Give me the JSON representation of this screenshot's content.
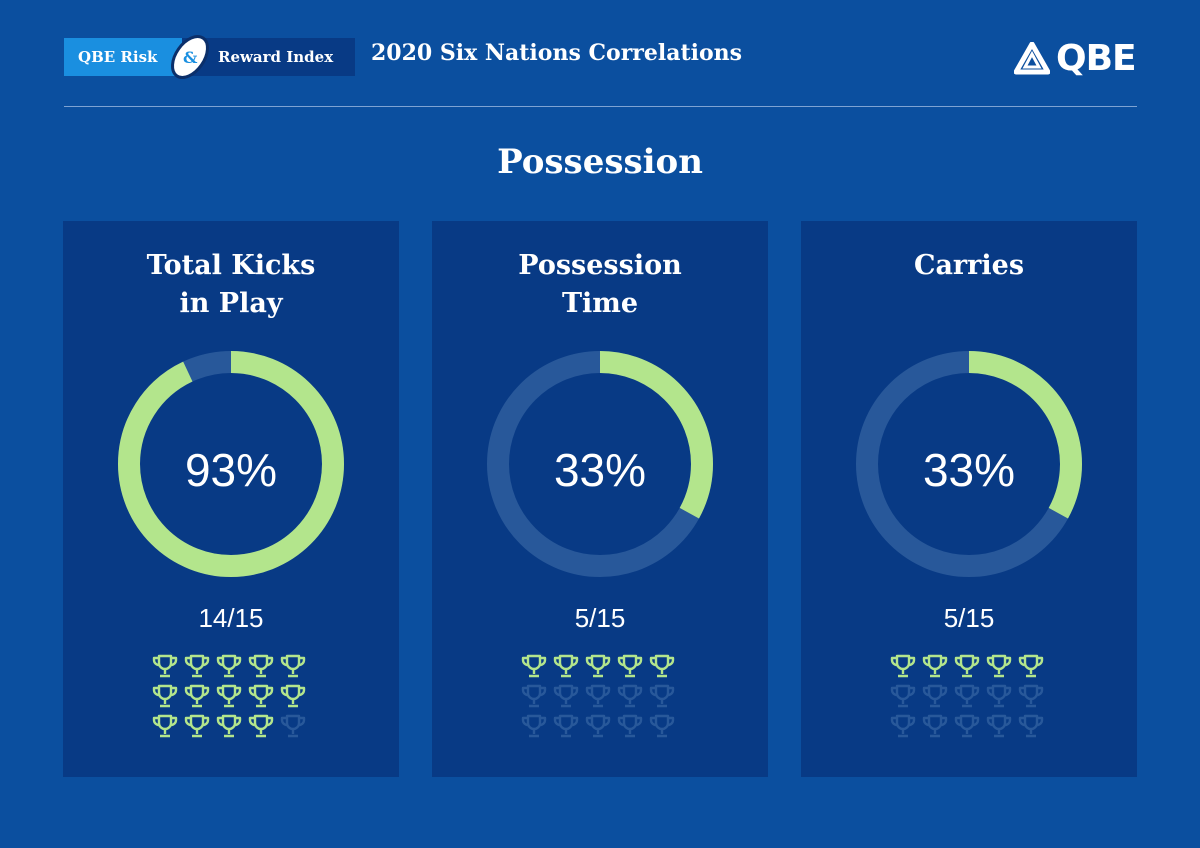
{
  "header": {
    "badge_left": "QBE Risk",
    "badge_amp": "&",
    "badge_right": "Reward Index",
    "title": "2020 Six Nations Correlations",
    "logo_text": "QBE"
  },
  "section_title": "Possession",
  "colors": {
    "background": "#0b4f9f",
    "panel": "#083a85",
    "accent": "#b3e58c",
    "track": "#28589a",
    "badge_light": "#1a8fe0"
  },
  "cards": [
    {
      "title": "Total Kicks\nin Play",
      "percent_label": "93%",
      "percent": 93,
      "fraction_label": "14/15",
      "wins": 14,
      "total": 15
    },
    {
      "title": "Possession\nTime",
      "percent_label": "33%",
      "percent": 33,
      "fraction_label": "5/15",
      "wins": 5,
      "total": 15
    },
    {
      "title": "Carries",
      "percent_label": "33%",
      "percent": 33,
      "fraction_label": "5/15",
      "wins": 5,
      "total": 15
    }
  ]
}
